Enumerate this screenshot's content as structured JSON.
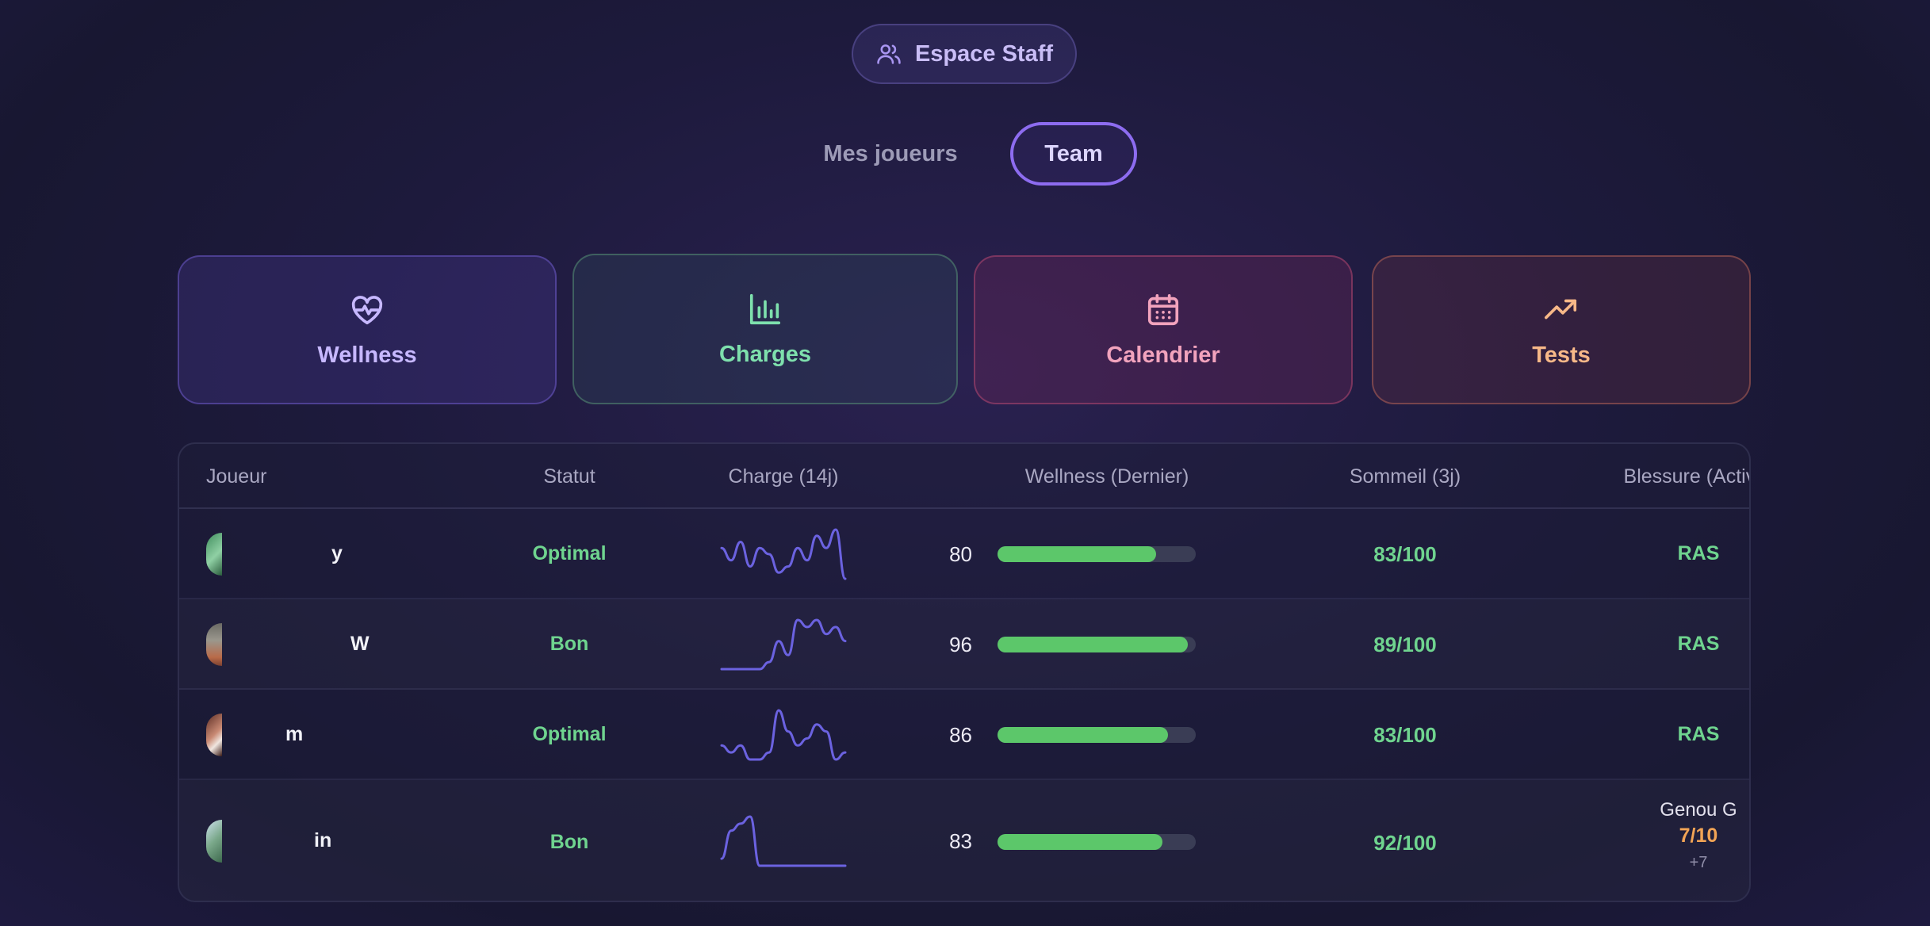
{
  "header": {
    "staff_label": "Espace Staff",
    "staff_icon": "users-icon"
  },
  "tabs": [
    {
      "label": "Mes joueurs",
      "active": false
    },
    {
      "label": "Team",
      "active": true
    }
  ],
  "cards": [
    {
      "label": "Wellness",
      "icon": "heart-pulse-icon",
      "color": "#c7b8ff"
    },
    {
      "label": "Charges",
      "icon": "bar-chart-icon",
      "color": "#7ee0ad"
    },
    {
      "label": "Calendrier",
      "icon": "calendar-icon",
      "color": "#f2a3bd"
    },
    {
      "label": "Tests",
      "icon": "trending-up-icon",
      "color": "#f7b888"
    }
  ],
  "table": {
    "columns": [
      "Joueur",
      "Statut",
      "Charge (14j)",
      "Wellness (Dernier)",
      "Sommeil (3j)",
      "Blessure (Active)"
    ],
    "rows": [
      {
        "name": "y",
        "status": "Optimal",
        "charge": [
          6,
          4,
          7,
          3,
          6,
          5,
          2,
          3,
          6,
          4,
          8,
          6,
          9,
          1
        ],
        "wellness": "80",
        "wellness_value": 80,
        "sleep": "83/100",
        "injury": "RAS"
      },
      {
        "name": "W",
        "status": "Bon",
        "charge": [
          0,
          0,
          0,
          0,
          0,
          1,
          4,
          2,
          7,
          6,
          7,
          5,
          6,
          4
        ],
        "wellness": "96",
        "wellness_value": 96,
        "sleep": "89/100",
        "injury": "RAS"
      },
      {
        "name": "m",
        "status": "Optimal",
        "charge": [
          3,
          2,
          3,
          1,
          1,
          2,
          8,
          5,
          3,
          4,
          6,
          5,
          1,
          2
        ],
        "wellness": "86",
        "wellness_value": 86,
        "sleep": "83/100",
        "injury": "RAS"
      },
      {
        "name": "in",
        "status": "Bon",
        "charge": [
          1,
          5,
          6,
          7,
          0,
          0,
          0,
          0,
          0,
          0,
          0,
          0,
          0,
          0
        ],
        "wellness": "83",
        "wellness_value": 83,
        "sleep": "92/100",
        "injury": "Genou G",
        "injury_level": "7/10",
        "injury_more": "+7"
      }
    ]
  },
  "colors": {
    "accent": "#8d6cf0",
    "good": "#6fd48f",
    "bar": "#5cc76a",
    "warning": "#f2a455",
    "spark": "#6b62e0"
  }
}
